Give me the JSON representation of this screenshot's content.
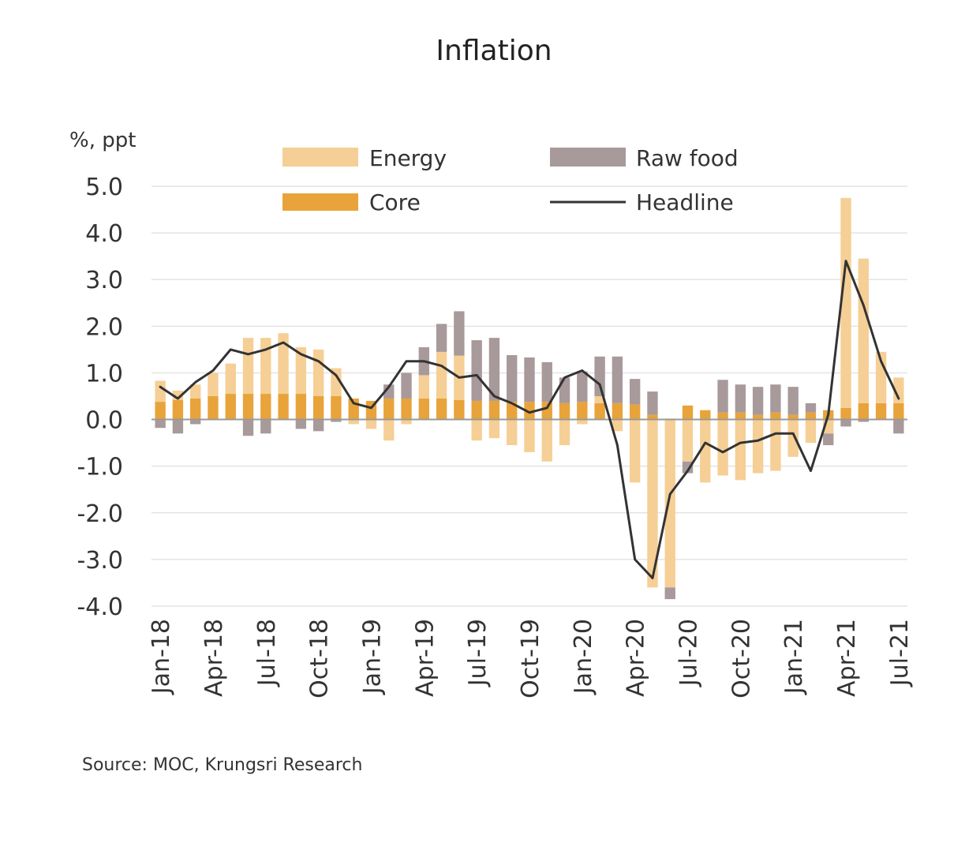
{
  "chart_data": {
    "type": "bar",
    "title": "Inflation",
    "ylabel": "%, ppt",
    "xlabel": "",
    "ylim": [
      -4.0,
      5.0
    ],
    "yticks": [
      5.0,
      4.0,
      3.0,
      2.0,
      1.0,
      0.0,
      -1.0,
      -2.0,
      -3.0,
      -4.0
    ],
    "ytick_labels": [
      "5.0",
      "4.0",
      "3.0",
      "2.0",
      "1.0",
      "0.0",
      "-1.0",
      "-2.0",
      "-3.0",
      "-4.0"
    ],
    "stacked": true,
    "grid": true,
    "legend_position": "top",
    "categories": [
      "Jan-18",
      "Feb-18",
      "Mar-18",
      "Apr-18",
      "May-18",
      "Jun-18",
      "Jul-18",
      "Aug-18",
      "Sep-18",
      "Oct-18",
      "Nov-18",
      "Dec-18",
      "Jan-19",
      "Feb-19",
      "Mar-19",
      "Apr-19",
      "May-19",
      "Jun-19",
      "Jul-19",
      "Aug-19",
      "Sep-19",
      "Oct-19",
      "Nov-19",
      "Dec-19",
      "Jan-20",
      "Feb-20",
      "Mar-20",
      "Apr-20",
      "May-20",
      "Jun-20",
      "Jul-20",
      "Aug-20",
      "Sep-20",
      "Oct-20",
      "Nov-20",
      "Dec-20",
      "Jan-21",
      "Feb-21",
      "Mar-21",
      "Apr-21",
      "May-21",
      "Jun-21",
      "Jul-21"
    ],
    "tick_labels": [
      "Jan-18",
      "Apr-18",
      "Jul-18",
      "Oct-18",
      "Jan-19",
      "Apr-19",
      "Jul-19",
      "Oct-19",
      "Jan-20",
      "Apr-20",
      "Jul-20",
      "Oct-20",
      "Jan-21",
      "Apr-21",
      "Jul-21"
    ],
    "series": [
      {
        "name": "Core",
        "kind": "bar",
        "color": "#e8a33a",
        "values": [
          0.38,
          0.42,
          0.45,
          0.5,
          0.55,
          0.55,
          0.55,
          0.55,
          0.55,
          0.5,
          0.5,
          0.45,
          0.4,
          0.45,
          0.45,
          0.45,
          0.45,
          0.42,
          0.4,
          0.4,
          0.38,
          0.38,
          0.38,
          0.35,
          0.38,
          0.35,
          0.35,
          0.32,
          0.1,
          0.02,
          0.3,
          0.2,
          0.15,
          0.15,
          0.1,
          0.15,
          0.1,
          0.15,
          0.2,
          0.25,
          0.35,
          0.35,
          0.35
        ]
      },
      {
        "name": "Energy",
        "kind": "bar",
        "color": "#f5cf95",
        "values": [
          0.45,
          0.2,
          0.3,
          0.5,
          0.65,
          1.2,
          1.2,
          1.3,
          1.0,
          1.0,
          0.6,
          -0.1,
          -0.2,
          -0.45,
          -0.1,
          0.5,
          1.0,
          0.95,
          -0.45,
          -0.4,
          -0.55,
          -0.7,
          -0.9,
          -0.55,
          -0.1,
          0.15,
          -0.25,
          -1.35,
          -3.6,
          -3.6,
          -0.9,
          -1.35,
          -1.2,
          -1.3,
          -1.15,
          -1.1,
          -0.8,
          -0.5,
          -0.3,
          4.5,
          3.1,
          1.1,
          0.55
        ]
      },
      {
        "name": "Raw food",
        "kind": "bar",
        "color": "#a8999a",
        "values": [
          -0.18,
          -0.3,
          -0.1,
          0.0,
          0.0,
          -0.35,
          -0.3,
          0.0,
          -0.2,
          -0.25,
          -0.05,
          0.0,
          0.0,
          0.3,
          0.55,
          0.6,
          0.6,
          0.95,
          1.3,
          1.35,
          1.0,
          0.95,
          0.85,
          0.55,
          0.65,
          0.85,
          1.0,
          0.55,
          0.5,
          -0.25,
          -0.25,
          0.0,
          0.7,
          0.6,
          0.6,
          0.6,
          0.6,
          0.2,
          -0.25,
          -0.15,
          -0.05,
          0.0,
          -0.3
        ]
      },
      {
        "name": "Headline",
        "kind": "line",
        "color": "#333333",
        "values": [
          0.7,
          0.45,
          0.8,
          1.05,
          1.5,
          1.4,
          1.5,
          1.65,
          1.4,
          1.25,
          0.95,
          0.35,
          0.25,
          0.7,
          1.25,
          1.25,
          1.15,
          0.9,
          0.95,
          0.5,
          0.35,
          0.15,
          0.25,
          0.9,
          1.05,
          0.75,
          -0.55,
          -3.0,
          -3.4,
          -1.6,
          -1.1,
          -0.5,
          -0.7,
          -0.5,
          -0.45,
          -0.3,
          -0.3,
          -1.1,
          0.1,
          3.4,
          2.45,
          1.25,
          0.45
        ]
      }
    ]
  },
  "legend": [
    {
      "label": "Energy",
      "color": "#f5cf95",
      "icon": "bar-swatch"
    },
    {
      "label": "Raw food",
      "color": "#a8999a",
      "icon": "bar-swatch"
    },
    {
      "label": "Core",
      "color": "#e8a33a",
      "icon": "bar-swatch"
    },
    {
      "label": "Headline",
      "color": "#333333",
      "icon": "line-swatch"
    }
  ],
  "source": "Source:  MOC, Krungsri Research"
}
